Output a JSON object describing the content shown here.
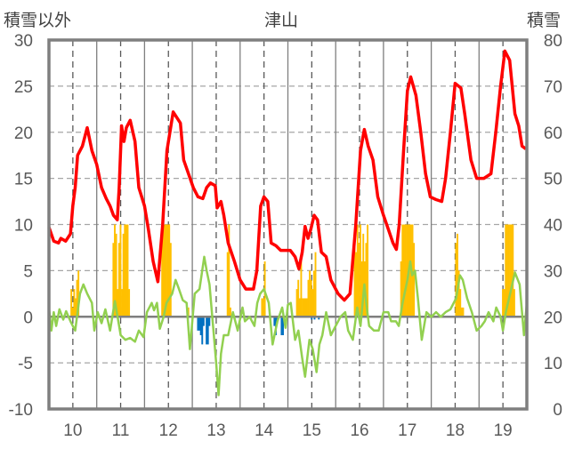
{
  "chart_data": {
    "type": "line",
    "title": "津山",
    "ylabel": "積雪以外",
    "y2label": "積雪",
    "xlim": [
      9.5,
      19.5
    ],
    "ylim": [
      -10,
      30
    ],
    "y2lim": [
      0,
      80
    ],
    "xticks": [
      "10",
      "11",
      "12",
      "13",
      "14",
      "15",
      "16",
      "17",
      "18",
      "19"
    ],
    "yticks": [
      "-10",
      "-5",
      "0",
      "5",
      "10",
      "15",
      "20",
      "25",
      "30"
    ],
    "y2ticks": [
      "0",
      "10",
      "20",
      "30",
      "40",
      "50",
      "60",
      "70",
      "80"
    ],
    "grid": true,
    "colors": {
      "red": "#FF0000",
      "green": "#92D050",
      "orange": "#FFC000",
      "blue": "#0070C0",
      "axis": "#7F7F7F"
    },
    "series": [
      {
        "name": "red",
        "type": "line",
        "color": "#FF0000",
        "points": [
          [
            9.5,
            9.7
          ],
          [
            9.6,
            8.2
          ],
          [
            9.7,
            8
          ],
          [
            9.75,
            8.5
          ],
          [
            9.85,
            8.2
          ],
          [
            9.95,
            9
          ],
          [
            10.0,
            12
          ],
          [
            10.05,
            14
          ],
          [
            10.1,
            17.5
          ],
          [
            10.2,
            18.5
          ],
          [
            10.3,
            20.5
          ],
          [
            10.4,
            18
          ],
          [
            10.5,
            16.5
          ],
          [
            10.6,
            14
          ],
          [
            10.7,
            12.8
          ],
          [
            10.78,
            12
          ],
          [
            10.85,
            11
          ],
          [
            10.93,
            10.5
          ],
          [
            10.97,
            14
          ],
          [
            11.02,
            20.7
          ],
          [
            11.07,
            19
          ],
          [
            11.12,
            20.5
          ],
          [
            11.2,
            21.3
          ],
          [
            11.3,
            19
          ],
          [
            11.38,
            14
          ],
          [
            11.5,
            12
          ],
          [
            11.58,
            9.5
          ],
          [
            11.68,
            6
          ],
          [
            11.78,
            3.8
          ],
          [
            11.88,
            10
          ],
          [
            11.97,
            18
          ],
          [
            12.1,
            22.2
          ],
          [
            12.25,
            21
          ],
          [
            12.32,
            17
          ],
          [
            12.42,
            15.5
          ],
          [
            12.52,
            14
          ],
          [
            12.62,
            13
          ],
          [
            12.72,
            12.8
          ],
          [
            12.8,
            14
          ],
          [
            12.88,
            14.5
          ],
          [
            12.98,
            14.2
          ],
          [
            13.02,
            11.8
          ],
          [
            13.1,
            12.5
          ],
          [
            13.16,
            11
          ],
          [
            13.25,
            8
          ],
          [
            13.38,
            6
          ],
          [
            13.5,
            4
          ],
          [
            13.62,
            3
          ],
          [
            13.78,
            3
          ],
          [
            13.85,
            5
          ],
          [
            13.93,
            12
          ],
          [
            14.0,
            13
          ],
          [
            14.08,
            12.5
          ],
          [
            14.15,
            8
          ],
          [
            14.25,
            7.7
          ],
          [
            14.35,
            7.2
          ],
          [
            14.55,
            7.2
          ],
          [
            14.65,
            6.5
          ],
          [
            14.73,
            5.2
          ],
          [
            14.8,
            7
          ],
          [
            14.86,
            9.8
          ],
          [
            14.92,
            8.5
          ],
          [
            14.98,
            9.5
          ],
          [
            15.05,
            11
          ],
          [
            15.12,
            10.5
          ],
          [
            15.2,
            7
          ],
          [
            15.3,
            6.5
          ],
          [
            15.4,
            4
          ],
          [
            15.55,
            2.5
          ],
          [
            15.68,
            1.8
          ],
          [
            15.8,
            2.5
          ],
          [
            15.92,
            10
          ],
          [
            16.02,
            18
          ],
          [
            16.1,
            20.3
          ],
          [
            16.18,
            18.5
          ],
          [
            16.28,
            17
          ],
          [
            16.38,
            13
          ],
          [
            16.5,
            11
          ],
          [
            16.6,
            9.5
          ],
          [
            16.7,
            8
          ],
          [
            16.77,
            7.3
          ],
          [
            16.83,
            10
          ],
          [
            16.92,
            18
          ],
          [
            17.0,
            24.5
          ],
          [
            17.07,
            26
          ],
          [
            17.18,
            24
          ],
          [
            17.28,
            20
          ],
          [
            17.38,
            15.5
          ],
          [
            17.48,
            13
          ],
          [
            17.6,
            12.7
          ],
          [
            17.72,
            12.5
          ],
          [
            17.8,
            15
          ],
          [
            17.9,
            20
          ],
          [
            18.0,
            25.3
          ],
          [
            18.12,
            24.8
          ],
          [
            18.2,
            22
          ],
          [
            18.33,
            17
          ],
          [
            18.45,
            15
          ],
          [
            18.6,
            15
          ],
          [
            18.75,
            15.5
          ],
          [
            18.85,
            20
          ],
          [
            18.95,
            25
          ],
          [
            19.04,
            28.8
          ],
          [
            19.14,
            27.8
          ],
          [
            19.25,
            22
          ],
          [
            19.33,
            20.7
          ],
          [
            19.4,
            18.5
          ],
          [
            19.48,
            18.2
          ]
        ]
      },
      {
        "name": "green",
        "type": "line",
        "color": "#92D050",
        "points": [
          [
            9.5,
            1
          ],
          [
            9.55,
            -1.5
          ],
          [
            9.6,
            0.5
          ],
          [
            9.65,
            -1
          ],
          [
            9.72,
            0.8
          ],
          [
            9.8,
            -0.3
          ],
          [
            9.86,
            0.6
          ],
          [
            9.95,
            -0.5
          ],
          [
            10.05,
            -1.5
          ],
          [
            10.15,
            2.5
          ],
          [
            10.22,
            3.5
          ],
          [
            10.3,
            2.5
          ],
          [
            10.4,
            1.5
          ],
          [
            10.45,
            -1.5
          ],
          [
            10.52,
            0.5
          ],
          [
            10.6,
            -0.7
          ],
          [
            10.68,
            0.8
          ],
          [
            10.78,
            -1.5
          ],
          [
            10.88,
            1.7
          ],
          [
            11.0,
            -2
          ],
          [
            11.1,
            -2.5
          ],
          [
            11.2,
            -2.3
          ],
          [
            11.3,
            -2.7
          ],
          [
            11.38,
            -1.5
          ],
          [
            11.48,
            -2.2
          ],
          [
            11.55,
            0.5
          ],
          [
            11.65,
            1.5
          ],
          [
            11.7,
            0.7
          ],
          [
            11.76,
            1.5
          ],
          [
            11.82,
            -1.3
          ],
          [
            11.9,
            0
          ],
          [
            11.96,
            1.5
          ],
          [
            12.08,
            2.5
          ],
          [
            12.15,
            4
          ],
          [
            12.22,
            3
          ],
          [
            12.3,
            1.8
          ],
          [
            12.38,
            1.5
          ],
          [
            12.45,
            -3.5
          ],
          [
            12.55,
            2.5
          ],
          [
            12.65,
            3
          ],
          [
            12.75,
            6.5
          ],
          [
            12.8,
            5
          ],
          [
            12.86,
            3.5
          ],
          [
            12.95,
            -2
          ],
          [
            13.0,
            -5
          ],
          [
            13.05,
            -8.5
          ],
          [
            13.1,
            -4
          ],
          [
            13.16,
            -2
          ],
          [
            13.25,
            -2
          ],
          [
            13.35,
            0.5
          ],
          [
            13.45,
            -1.5
          ],
          [
            13.55,
            1
          ],
          [
            13.6,
            -0.5
          ],
          [
            13.7,
            0
          ],
          [
            13.8,
            -1
          ],
          [
            13.86,
            1.5
          ],
          [
            13.92,
            2.5
          ],
          [
            14.0,
            3
          ],
          [
            14.1,
            1.5
          ],
          [
            14.18,
            -3
          ],
          [
            14.28,
            -0.5
          ],
          [
            14.38,
            1
          ],
          [
            14.45,
            -1.2
          ],
          [
            14.5,
            1.3
          ],
          [
            14.56,
            1.5
          ],
          [
            14.65,
            -2.5
          ],
          [
            14.72,
            -1.5
          ],
          [
            14.8,
            -4.5
          ],
          [
            14.86,
            -6.5
          ],
          [
            14.95,
            -2.5
          ],
          [
            15.02,
            -3.5
          ],
          [
            15.1,
            -6
          ],
          [
            15.16,
            -3
          ],
          [
            15.22,
            -2
          ],
          [
            15.3,
            0.5
          ],
          [
            15.4,
            -2
          ],
          [
            15.5,
            -1
          ],
          [
            15.6,
            0
          ],
          [
            15.7,
            0.5
          ],
          [
            15.76,
            -1.5
          ],
          [
            15.86,
            -2.5
          ],
          [
            15.95,
            1
          ],
          [
            16.02,
            -1
          ],
          [
            16.1,
            3.5
          ],
          [
            16.15,
            1
          ],
          [
            16.2,
            -1
          ],
          [
            16.3,
            -1.5
          ],
          [
            16.4,
            -1.5
          ],
          [
            16.5,
            0.5
          ],
          [
            16.6,
            0.5
          ],
          [
            16.66,
            -0.5
          ],
          [
            16.76,
            -0.5
          ],
          [
            16.82,
            -1
          ],
          [
            16.9,
            1.5
          ],
          [
            17.0,
            4
          ],
          [
            17.06,
            6
          ],
          [
            17.1,
            4.5
          ],
          [
            17.16,
            5
          ],
          [
            17.22,
            2
          ],
          [
            17.3,
            -2.5
          ],
          [
            17.4,
            0.5
          ],
          [
            17.5,
            0
          ],
          [
            17.6,
            0.5
          ],
          [
            17.7,
            0
          ],
          [
            17.8,
            0.5
          ],
          [
            17.9,
            0.8
          ],
          [
            18.02,
            2
          ],
          [
            18.1,
            4.5
          ],
          [
            18.16,
            4
          ],
          [
            18.25,
            2
          ],
          [
            18.35,
            0.5
          ],
          [
            18.45,
            -1.5
          ],
          [
            18.55,
            -1
          ],
          [
            18.62,
            -0.5
          ],
          [
            18.7,
            0.5
          ],
          [
            18.8,
            -0.5
          ],
          [
            18.86,
            1
          ],
          [
            18.95,
            0
          ],
          [
            19.0,
            -1.5
          ],
          [
            19.06,
            0.5
          ],
          [
            19.15,
            2.5
          ],
          [
            19.25,
            4.8
          ],
          [
            19.35,
            3.5
          ],
          [
            19.44,
            -2
          ],
          [
            19.5,
            1.5
          ]
        ]
      },
      {
        "name": "orange",
        "type": "bar",
        "color": "#FFC000",
        "groups": [
          {
            "start": 9.95,
            "step": 0.03,
            "values": [
              3,
              1,
              3,
              2,
              4,
              5
            ]
          },
          {
            "start": 10.83,
            "step": 0.03,
            "values": [
              8,
              10,
              9,
              3,
              8,
              10,
              3,
              9,
              10,
              10,
              10,
              3
            ]
          },
          {
            "start": 11.85,
            "step": 0.03,
            "values": [
              10,
              10,
              10,
              10,
              10,
              10,
              8
            ]
          },
          {
            "start": 12.4,
            "step": 0.03,
            "values": [
              1
            ]
          },
          {
            "start": 13.22,
            "step": 0.03,
            "values": [
              7,
              10,
              1
            ]
          },
          {
            "start": 13.94,
            "step": 0.03,
            "values": [
              2,
              2,
              6
            ]
          },
          {
            "start": 14.67,
            "step": 0.03,
            "values": [
              3,
              4,
              2,
              6,
              2,
              2,
              2,
              2,
              4,
              5,
              4,
              3,
              5,
              7
            ]
          },
          {
            "start": 15.88,
            "step": 0.03,
            "values": [
              8,
              7,
              10,
              8,
              10,
              6,
              9,
              6,
              8,
              10
            ]
          },
          {
            "start": 16.85,
            "step": 0.03,
            "values": [
              6,
              10,
              10,
              10,
              10,
              10,
              10,
              10,
              10,
              8
            ]
          },
          {
            "start": 18.0,
            "step": 0.03,
            "values": [
              8,
              9,
              5,
              3,
              1,
              1
            ]
          },
          {
            "start": 18.98,
            "step": 0.03,
            "values": [
              3,
              3,
              10,
              10,
              10,
              10,
              10,
              10,
              3
            ]
          }
        ]
      },
      {
        "name": "blue",
        "type": "bar",
        "color": "#0070C0",
        "groups": [
          {
            "start": 12.6,
            "step": 0.03,
            "values": [
              -1.5,
              -1.5,
              -2,
              -3,
              -1,
              0,
              -3,
              -3,
              -1
            ]
          },
          {
            "start": 14.2,
            "step": 0.03,
            "values": [
              -1,
              -2,
              -0.5,
              0,
              0,
              -2,
              -2
            ]
          },
          {
            "start": 14.98,
            "step": 0.03,
            "values": [
              -0.3,
              0,
              -0.3,
              0,
              0,
              -0.3
            ]
          }
        ]
      }
    ]
  }
}
